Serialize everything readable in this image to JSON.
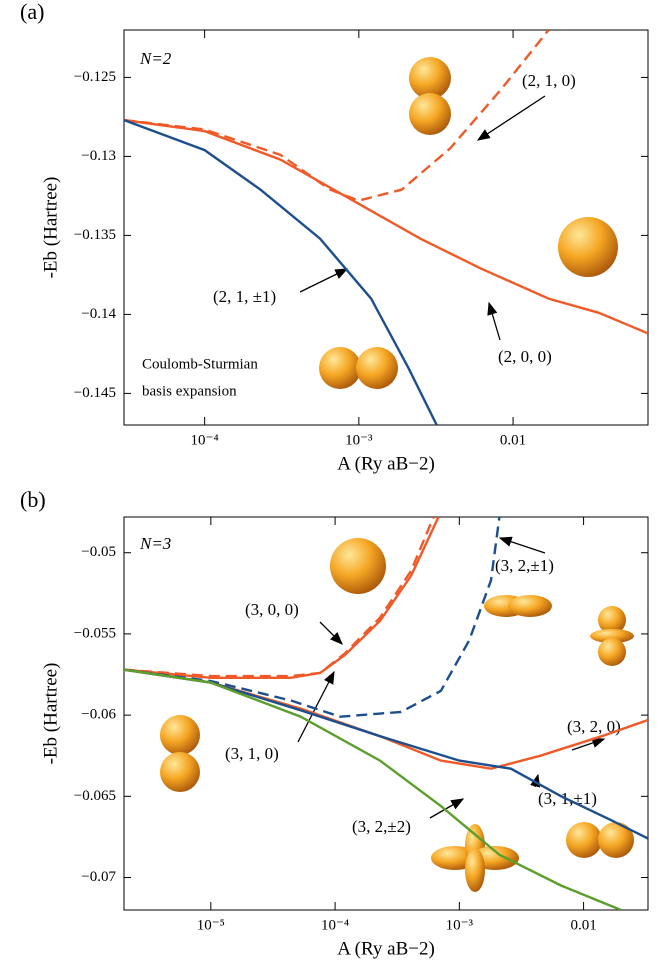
{
  "chart_data": [
    {
      "type": "line",
      "panel": "(a)",
      "xlabel": "A (Ry aB−2)",
      "ylabel": "-Eb (Hartree)",
      "xscale": "log",
      "xlim": [
        3e-05,
        0.075
      ],
      "ylim": [
        -0.147,
        -0.122
      ],
      "xticks": [
        {
          "value": 0.0001,
          "label": "10⁻⁴"
        },
        {
          "value": 0.001,
          "label": "10⁻³"
        },
        0.01
      ],
      "yticks": [
        {
          "value": -0.125,
          "label": "−0.125"
        },
        {
          "value": -0.13,
          "label": "−0.13"
        },
        {
          "value": -0.135,
          "label": "−0.135"
        },
        {
          "value": -0.14,
          "label": "−0.14"
        },
        {
          "value": -0.145,
          "label": "−0.145"
        }
      ],
      "annotations": [
        "N=2",
        "Coulomb-Sturmian",
        "basis expansion"
      ],
      "series": [
        {
          "name": "(2, 1, 0)",
          "color": "#f05a28",
          "dashed": true,
          "x": [
            3e-05,
            0.0001,
            0.00031,
            0.00065,
            0.001,
            0.0019,
            0.0039,
            0.0083,
            0.017
          ],
          "values": [
            -0.1277,
            -0.1283,
            -0.1299,
            -0.1321,
            -0.1328,
            -0.1321,
            -0.1295,
            -0.1258,
            -0.122
          ]
        },
        {
          "name": "(2, 0, 0)",
          "color": "#f05a28",
          "dashed": false,
          "x": [
            3e-05,
            0.0001,
            0.00031,
            0.001,
            0.0025,
            0.0062,
            0.017,
            0.036,
            0.075
          ],
          "values": [
            -0.1277,
            -0.1284,
            -0.1302,
            -0.133,
            -0.1352,
            -0.1371,
            -0.139,
            -0.1399,
            -0.1412
          ]
        },
        {
          "name": "(2, 1, ±1)",
          "color": "#1d4f8e",
          "dashed": false,
          "x": [
            3e-05,
            0.0001,
            0.00023,
            0.00056,
            0.0012,
            0.0021,
            0.0032
          ],
          "values": [
            -0.1277,
            -0.1296,
            -0.1321,
            -0.1352,
            -0.139,
            -0.1434,
            -0.147
          ]
        }
      ]
    },
    {
      "type": "line",
      "panel": "(b)",
      "xlabel": "A (Ry aB−2)",
      "ylabel": "-Eb (Hartree)",
      "xscale": "log",
      "xlim": [
        2e-06,
        0.033
      ],
      "ylim": [
        -0.072,
        -0.0478
      ],
      "xticks": [
        {
          "value": 1e-05,
          "label": "10⁻⁵"
        },
        {
          "value": 0.0001,
          "label": "10⁻⁴"
        },
        {
          "value": 0.001,
          "label": "10⁻³"
        },
        0.01
      ],
      "yticks": [
        {
          "value": -0.05,
          "label": "−0.05"
        },
        {
          "value": -0.055,
          "label": "−0.055"
        },
        {
          "value": -0.06,
          "label": "−0.06"
        },
        {
          "value": -0.065,
          "label": "−0.065"
        },
        {
          "value": -0.07,
          "label": "−0.07"
        }
      ],
      "annotations": [
        "N=3"
      ],
      "series": [
        {
          "name": "(3, 0, 0)",
          "color": "#f05a28",
          "dashed": false,
          "x": [
            2e-06,
            1e-05,
            4.4e-05,
            7.6e-05,
            0.00012,
            0.00023,
            0.00041,
            0.00068
          ],
          "values": [
            -0.0572,
            -0.0577,
            -0.0577,
            -0.0574,
            -0.0563,
            -0.0542,
            -0.0514,
            -0.0478
          ]
        },
        {
          "name": "(3, 1, 0)",
          "color": "#f05a28",
          "dashed": true,
          "x": [
            2e-06,
            1e-05,
            4.4e-05,
            7.6e-05,
            0.00012,
            0.00023,
            0.00041,
            0.00062
          ],
          "values": [
            -0.0572,
            -0.0576,
            -0.0576,
            -0.0574,
            -0.0562,
            -0.054,
            -0.0511,
            -0.0478
          ]
        },
        {
          "name": "(3, 2,±1)",
          "color": "#1d4f8e",
          "dashed": true,
          "x": [
            2e-06,
            1e-05,
            4.4e-05,
            0.00011,
            0.00034,
            0.00071,
            0.0012,
            0.0018,
            0.0021
          ],
          "values": [
            -0.0572,
            -0.0579,
            -0.0591,
            -0.0601,
            -0.0598,
            -0.0585,
            -0.0554,
            -0.0517,
            -0.0478
          ]
        },
        {
          "name": "(3, 2, 0)",
          "color": "#f05a28",
          "dashed": false,
          "x": [
            2e-06,
            1e-05,
            5.3e-05,
            0.00023,
            0.00071,
            0.0018,
            0.0045,
            0.014,
            0.033
          ],
          "values": [
            -0.0572,
            -0.058,
            -0.0596,
            -0.0613,
            -0.0628,
            -0.0633,
            -0.0625,
            -0.0613,
            -0.0603
          ]
        },
        {
          "name": "(3, 1,±1)",
          "color": "#1d4f8e",
          "dashed": false,
          "x": [
            2e-06,
            1e-05,
            5.3e-05,
            0.00023,
            0.001,
            0.0026,
            0.0066,
            0.017,
            0.033
          ],
          "values": [
            -0.0572,
            -0.058,
            -0.0597,
            -0.0613,
            -0.0628,
            -0.0633,
            -0.065,
            -0.0665,
            -0.0676
          ]
        },
        {
          "name": "(3, 2,±2)",
          "color": "#5c9e2c",
          "dashed": false,
          "x": [
            2e-06,
            1e-05,
            5.3e-05,
            0.00023,
            0.00071,
            0.0021,
            0.0066,
            0.02
          ],
          "values": [
            -0.0572,
            -0.058,
            -0.0601,
            -0.0628,
            -0.0656,
            -0.0686,
            -0.0705,
            -0.072
          ]
        }
      ]
    }
  ]
}
